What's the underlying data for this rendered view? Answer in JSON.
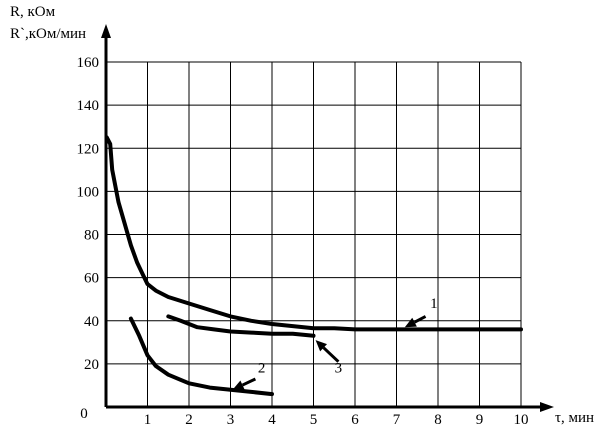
{
  "chart_data": {
    "type": "line",
    "ylabel_lines": [
      "R, кОм",
      "R`,кОм/мин"
    ],
    "xlabel": "τ, мин",
    "xlim": [
      0,
      10
    ],
    "ylim": [
      0,
      160
    ],
    "x_ticks": [
      1,
      2,
      3,
      4,
      5,
      6,
      7,
      8,
      9,
      10
    ],
    "y_ticks": [
      20,
      40,
      60,
      80,
      100,
      120,
      140,
      160
    ],
    "origin_label": "0",
    "grid": true,
    "series": [
      {
        "label": "1",
        "points": [
          [
            0.02,
            125
          ],
          [
            0.1,
            122
          ],
          [
            0.15,
            110
          ],
          [
            0.3,
            95
          ],
          [
            0.45,
            85
          ],
          [
            0.6,
            75
          ],
          [
            0.75,
            67
          ],
          [
            0.9,
            61
          ],
          [
            1,
            57
          ],
          [
            1.2,
            54
          ],
          [
            1.5,
            51
          ],
          [
            2,
            48
          ],
          [
            2.5,
            45
          ],
          [
            3,
            42
          ],
          [
            3.5,
            40
          ],
          [
            4,
            38.5
          ],
          [
            4.5,
            37.5
          ],
          [
            5,
            36.5
          ],
          [
            5.5,
            36.5
          ],
          [
            6,
            36
          ],
          [
            7,
            36
          ],
          [
            8,
            36
          ],
          [
            9,
            36
          ],
          [
            10,
            36
          ]
        ]
      },
      {
        "label": "2",
        "points": [
          [
            0.6,
            41
          ],
          [
            0.8,
            33
          ],
          [
            1,
            24
          ],
          [
            1.2,
            19
          ],
          [
            1.5,
            15
          ],
          [
            2,
            11
          ],
          [
            2.5,
            9
          ],
          [
            3,
            8
          ],
          [
            3.5,
            7
          ],
          [
            4,
            6
          ]
        ]
      },
      {
        "label": "3",
        "points": [
          [
            1.5,
            42
          ],
          [
            1.8,
            40
          ],
          [
            2.2,
            37
          ],
          [
            2.6,
            36
          ],
          [
            3,
            35
          ],
          [
            3.5,
            34.5
          ],
          [
            4,
            34
          ],
          [
            4.5,
            34
          ],
          [
            5,
            33
          ]
        ]
      }
    ],
    "annotations": [
      {
        "text": "1",
        "label_pos": [
          7.9,
          46
        ],
        "arrow_from": [
          7.7,
          42
        ],
        "arrow_to": [
          7.2,
          37
        ]
      },
      {
        "text": "2",
        "label_pos": [
          3.75,
          16
        ],
        "arrow_from": [
          3.6,
          13
        ],
        "arrow_to": [
          3.05,
          8
        ]
      },
      {
        "text": "3",
        "label_pos": [
          5.6,
          16
        ],
        "arrow_from": [
          5.6,
          21
        ],
        "arrow_to": [
          5.05,
          31
        ]
      }
    ]
  }
}
